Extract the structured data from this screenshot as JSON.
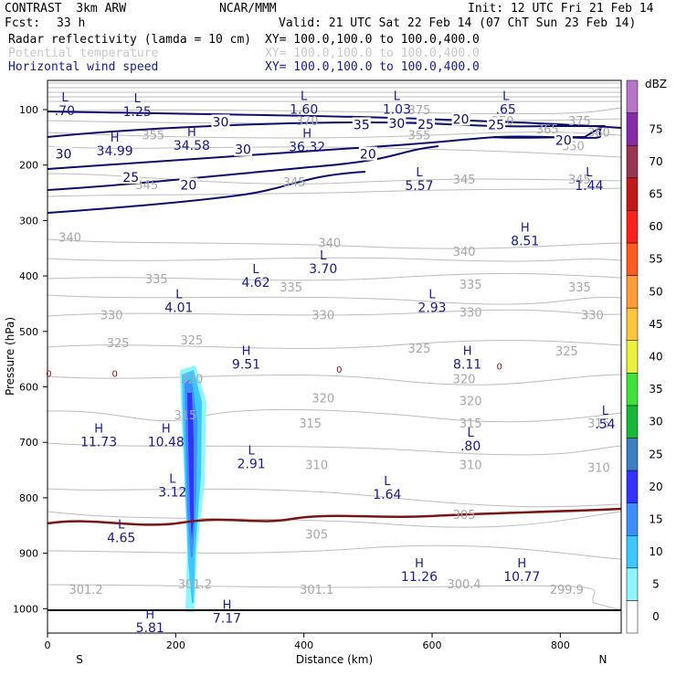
{
  "header": {
    "model": "CONTRAST  3km ARW",
    "org": "NCAR/MMM",
    "init": "Init: 12 UTC Fri 21 Feb 14",
    "fcst_label": "Fcst:",
    "fcst_value": "33 h",
    "valid": "Valid: 21 UTC Sat 22 Feb 14 (07 ChT Sun 23 Feb 14)",
    "fields": [
      {
        "name": "Radar reflectivity (lamda = 10 cm)",
        "xy": "XY= 100.0,100.0 to 100.0,400.0",
        "color": "#000000"
      },
      {
        "name": "Potential temperature",
        "xy": "XY= 100.0,100.0 to 100.0,400.0",
        "color": "#c8c8c8"
      },
      {
        "name": "Horizontal wind speed",
        "xy": "XY= 100.0,100.0 to 100.0,400.0",
        "color": "#1a1a8c"
      }
    ]
  },
  "chart_data": {
    "type": "contour-cross-section",
    "xlabel": "Distance (km)",
    "ylabel": "Pressure (hPa)",
    "xlim": [
      0,
      895
    ],
    "ylim": [
      1050,
      55
    ],
    "x_ticks": [
      0,
      200,
      400,
      600,
      800
    ],
    "y_ticks": [
      100,
      200,
      300,
      400,
      500,
      600,
      700,
      800,
      900,
      1000
    ],
    "x_end_labels": {
      "left": "S",
      "right": "N"
    },
    "colorbar": {
      "unit": "dBZ",
      "levels": [
        0,
        5,
        10,
        15,
        20,
        25,
        30,
        35,
        40,
        45,
        50,
        55,
        60,
        65,
        70,
        75
      ],
      "colors": [
        "#ffffff",
        "#8ff6ff",
        "#3cc8ff",
        "#3d8eff",
        "#3333ff",
        "#3a7fbf",
        "#17b83a",
        "#3fe13a",
        "#eaf03c",
        "#ffc63d",
        "#ff9b3b",
        "#ff5a1f",
        "#ff1f1a",
        "#c21818",
        "#983550",
        "#852aa8",
        "#b875c8"
      ]
    },
    "theta_labels": [
      {
        "text": "375",
        "x": 830,
        "p": 120
      },
      {
        "text": "375",
        "x": 580,
        "p": 100
      },
      {
        "text": "370",
        "x": 405,
        "p": 120
      },
      {
        "text": "370",
        "x": 710,
        "p": 120
      },
      {
        "text": "365",
        "x": 780,
        "p": 135
      },
      {
        "text": "360",
        "x": 860,
        "p": 140
      },
      {
        "text": "355",
        "x": 165,
        "p": 145
      },
      {
        "text": "355",
        "x": 580,
        "p": 145
      },
      {
        "text": "350",
        "x": 820,
        "p": 165
      },
      {
        "text": "345",
        "x": 155,
        "p": 235
      },
      {
        "text": "345",
        "x": 385,
        "p": 230
      },
      {
        "text": "345",
        "x": 650,
        "p": 225
      },
      {
        "text": "345",
        "x": 830,
        "p": 225
      },
      {
        "text": "340",
        "x": 35,
        "p": 330
      },
      {
        "text": "340",
        "x": 440,
        "p": 340
      },
      {
        "text": "340",
        "x": 650,
        "p": 355
      },
      {
        "text": "335",
        "x": 170,
        "p": 405
      },
      {
        "text": "335",
        "x": 380,
        "p": 420
      },
      {
        "text": "335",
        "x": 660,
        "p": 415
      },
      {
        "text": "335",
        "x": 830,
        "p": 420
      },
      {
        "text": "330",
        "x": 100,
        "p": 470
      },
      {
        "text": "330",
        "x": 430,
        "p": 470
      },
      {
        "text": "330",
        "x": 660,
        "p": 465
      },
      {
        "text": "330",
        "x": 850,
        "p": 470
      },
      {
        "text": "325",
        "x": 110,
        "p": 520
      },
      {
        "text": "325",
        "x": 225,
        "p": 515
      },
      {
        "text": "325",
        "x": 580,
        "p": 530
      },
      {
        "text": "325",
        "x": 810,
        "p": 535
      },
      {
        "text": "320",
        "x": 225,
        "p": 585
      },
      {
        "text": "320",
        "x": 430,
        "p": 620
      },
      {
        "text": "320",
        "x": 650,
        "p": 585
      },
      {
        "text": "320",
        "x": 660,
        "p": 625
      },
      {
        "text": "315",
        "x": 215,
        "p": 650
      },
      {
        "text": "315",
        "x": 410,
        "p": 665
      },
      {
        "text": "315",
        "x": 660,
        "p": 665
      },
      {
        "text": "315",
        "x": 860,
        "p": 665
      },
      {
        "text": "310",
        "x": 420,
        "p": 740
      },
      {
        "text": "310",
        "x": 660,
        "p": 740
      },
      {
        "text": "310",
        "x": 860,
        "p": 745
      },
      {
        "text": "305",
        "x": 420,
        "p": 865
      },
      {
        "text": "305",
        "x": 650,
        "p": 830
      },
      {
        "text": "301.2",
        "x": 60,
        "p": 965
      },
      {
        "text": "301.2",
        "x": 230,
        "p": 955
      },
      {
        "text": "301.1",
        "x": 420,
        "p": 965
      },
      {
        "text": "300.4",
        "x": 650,
        "p": 955
      },
      {
        "text": "299.9",
        "x": 810,
        "p": 965
      }
    ],
    "wind_labels": [
      {
        "text": "30",
        "x": 270,
        "p": 122
      },
      {
        "text": "35",
        "x": 490,
        "p": 127
      },
      {
        "text": "30",
        "x": 545,
        "p": 125
      },
      {
        "text": "25",
        "x": 590,
        "p": 126
      },
      {
        "text": "20",
        "x": 645,
        "p": 117
      },
      {
        "text": "25",
        "x": 700,
        "p": 127
      },
      {
        "text": "30",
        "x": 25,
        "p": 180
      },
      {
        "text": "30",
        "x": 305,
        "p": 172
      },
      {
        "text": "20",
        "x": 500,
        "p": 180
      },
      {
        "text": "20",
        "x": 805,
        "p": 155
      },
      {
        "text": "25",
        "x": 130,
        "p": 222
      },
      {
        "text": "20",
        "x": 220,
        "p": 236
      }
    ],
    "extrema": [
      {
        "type": "L",
        "value": ".70",
        "x": 27,
        "p": 85
      },
      {
        "type": "L",
        "value": "1.25",
        "x": 140,
        "p": 87
      },
      {
        "type": "L",
        "value": "1.60",
        "x": 400,
        "p": 83
      },
      {
        "type": "L",
        "value": "1.03",
        "x": 545,
        "p": 83
      },
      {
        "type": "L",
        "value": ".65",
        "x": 715,
        "p": 83
      },
      {
        "type": "H",
        "value": "34.99",
        "x": 105,
        "p": 158
      },
      {
        "type": "H",
        "value": "34.58",
        "x": 225,
        "p": 148
      },
      {
        "type": "H",
        "value": "36.32",
        "x": 405,
        "p": 150
      },
      {
        "type": "L",
        "value": "5.57",
        "x": 580,
        "p": 220
      },
      {
        "type": "L",
        "value": "1.44",
        "x": 845,
        "p": 220
      },
      {
        "type": "H",
        "value": "8.51",
        "x": 745,
        "p": 320
      },
      {
        "type": "L",
        "value": "3.70",
        "x": 430,
        "p": 370
      },
      {
        "type": "L",
        "value": "4.62",
        "x": 325,
        "p": 395
      },
      {
        "type": "L",
        "value": "4.01",
        "x": 205,
        "p": 440
      },
      {
        "type": "L",
        "value": "2.93",
        "x": 600,
        "p": 440
      },
      {
        "type": "H",
        "value": "9.51",
        "x": 310,
        "p": 542
      },
      {
        "type": "H",
        "value": "8.11",
        "x": 655,
        "p": 542
      },
      {
        "type": "H",
        "value": "11.73",
        "x": 80,
        "p": 682
      },
      {
        "type": "H",
        "value": "10.48",
        "x": 185,
        "p": 682
      },
      {
        "type": "L",
        "value": "2.91",
        "x": 318,
        "p": 722
      },
      {
        "type": "L",
        "value": ".80",
        "x": 660,
        "p": 690
      },
      {
        "type": "L",
        "value": ".54",
        "x": 870,
        "p": 650
      },
      {
        "type": "L",
        "value": "3.12",
        "x": 195,
        "p": 773
      },
      {
        "type": "L",
        "value": "1.64",
        "x": 530,
        "p": 777
      },
      {
        "type": "L",
        "value": "4.65",
        "x": 115,
        "p": 855
      },
      {
        "type": "H",
        "value": "11.26",
        "x": 580,
        "p": 925
      },
      {
        "type": "H",
        "value": "10.77",
        "x": 740,
        "p": 925
      },
      {
        "type": "H",
        "value": "7.17",
        "x": 280,
        "p": 1000
      },
      {
        "type": "H",
        "value": "5.81",
        "x": 160,
        "p": 1018
      }
    ],
    "zero_label": "0"
  }
}
